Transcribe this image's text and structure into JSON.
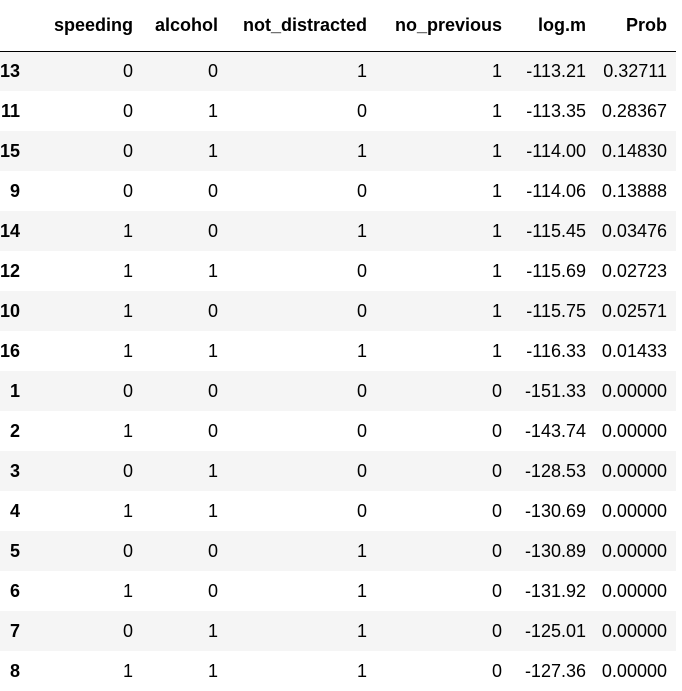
{
  "table": {
    "columns": [
      "",
      "speeding",
      "alcohol",
      "not_distracted",
      "no_previous",
      "log.m",
      "Prob"
    ],
    "rows": [
      {
        "index": "13",
        "speeding": "0",
        "alcohol": "0",
        "not_distracted": "1",
        "no_previous": "1",
        "log_m": "-113.21",
        "prob": "0.32711"
      },
      {
        "index": "11",
        "speeding": "0",
        "alcohol": "1",
        "not_distracted": "0",
        "no_previous": "1",
        "log_m": "-113.35",
        "prob": "0.28367"
      },
      {
        "index": "15",
        "speeding": "0",
        "alcohol": "1",
        "not_distracted": "1",
        "no_previous": "1",
        "log_m": "-114.00",
        "prob": "0.14830"
      },
      {
        "index": "9",
        "speeding": "0",
        "alcohol": "0",
        "not_distracted": "0",
        "no_previous": "1",
        "log_m": "-114.06",
        "prob": "0.13888"
      },
      {
        "index": "14",
        "speeding": "1",
        "alcohol": "0",
        "not_distracted": "1",
        "no_previous": "1",
        "log_m": "-115.45",
        "prob": "0.03476"
      },
      {
        "index": "12",
        "speeding": "1",
        "alcohol": "1",
        "not_distracted": "0",
        "no_previous": "1",
        "log_m": "-115.69",
        "prob": "0.02723"
      },
      {
        "index": "10",
        "speeding": "1",
        "alcohol": "0",
        "not_distracted": "0",
        "no_previous": "1",
        "log_m": "-115.75",
        "prob": "0.02571"
      },
      {
        "index": "16",
        "speeding": "1",
        "alcohol": "1",
        "not_distracted": "1",
        "no_previous": "1",
        "log_m": "-116.33",
        "prob": "0.01433"
      },
      {
        "index": "1",
        "speeding": "0",
        "alcohol": "0",
        "not_distracted": "0",
        "no_previous": "0",
        "log_m": "-151.33",
        "prob": "0.00000"
      },
      {
        "index": "2",
        "speeding": "1",
        "alcohol": "0",
        "not_distracted": "0",
        "no_previous": "0",
        "log_m": "-143.74",
        "prob": "0.00000"
      },
      {
        "index": "3",
        "speeding": "0",
        "alcohol": "1",
        "not_distracted": "0",
        "no_previous": "0",
        "log_m": "-128.53",
        "prob": "0.00000"
      },
      {
        "index": "4",
        "speeding": "1",
        "alcohol": "1",
        "not_distracted": "0",
        "no_previous": "0",
        "log_m": "-130.69",
        "prob": "0.00000"
      },
      {
        "index": "5",
        "speeding": "0",
        "alcohol": "0",
        "not_distracted": "1",
        "no_previous": "0",
        "log_m": "-130.89",
        "prob": "0.00000"
      },
      {
        "index": "6",
        "speeding": "1",
        "alcohol": "0",
        "not_distracted": "1",
        "no_previous": "0",
        "log_m": "-131.92",
        "prob": "0.00000"
      },
      {
        "index": "7",
        "speeding": "0",
        "alcohol": "1",
        "not_distracted": "1",
        "no_previous": "0",
        "log_m": "-125.01",
        "prob": "0.00000"
      },
      {
        "index": "8",
        "speeding": "1",
        "alcohol": "1",
        "not_distracted": "1",
        "no_previous": "0",
        "log_m": "-127.36",
        "prob": "0.00000"
      }
    ]
  },
  "colors": {
    "row_stripe": "#f5f5f5",
    "row_plain": "#ffffff",
    "header_rule": "#000000"
  }
}
